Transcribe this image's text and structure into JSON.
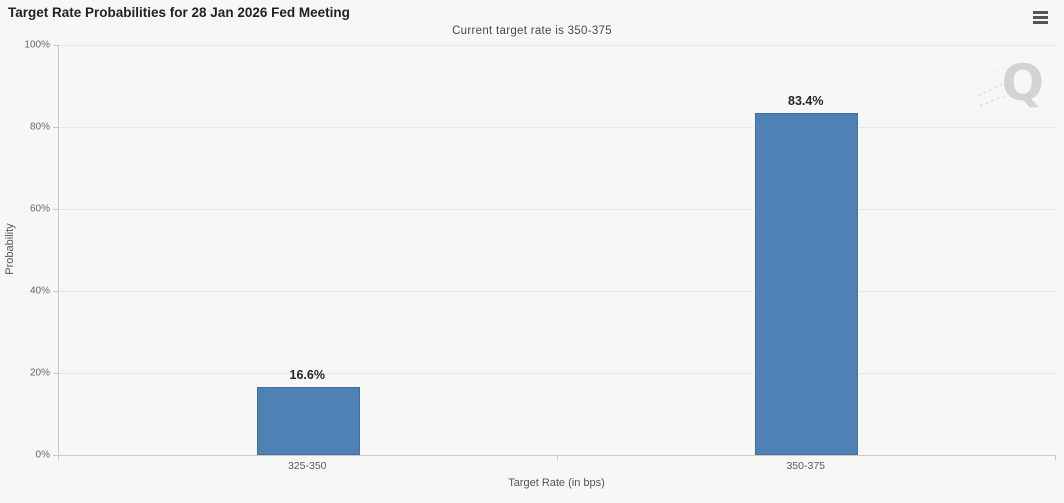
{
  "header": {
    "title": "Target Rate Probabilities for 28 Jan 2026 Fed Meeting",
    "menu_icon": "hamburger-icon"
  },
  "watermark": "Q",
  "chart_data": {
    "type": "bar",
    "title": "Target Rate Probabilities for 28 Jan 2026 Fed Meeting",
    "subtitle": "Current target rate is 350-375",
    "categories": [
      "325-350",
      "350-375"
    ],
    "values": [
      16.6,
      83.4
    ],
    "data_labels": [
      "16.6%",
      "83.4%"
    ],
    "xlabel": "Target Rate (in bps)",
    "ylabel": "Probability",
    "ylim": [
      0,
      100
    ],
    "ytick_interval": 20,
    "yticks": [
      "0%",
      "20%",
      "40%",
      "60%",
      "80%",
      "100%"
    ],
    "grid": true,
    "legend": false,
    "bar_color": "#4f81b5",
    "bar_border_color": "#44709f",
    "background_color": "#f7f7f5",
    "gridline_color": "#d9d9d7"
  }
}
